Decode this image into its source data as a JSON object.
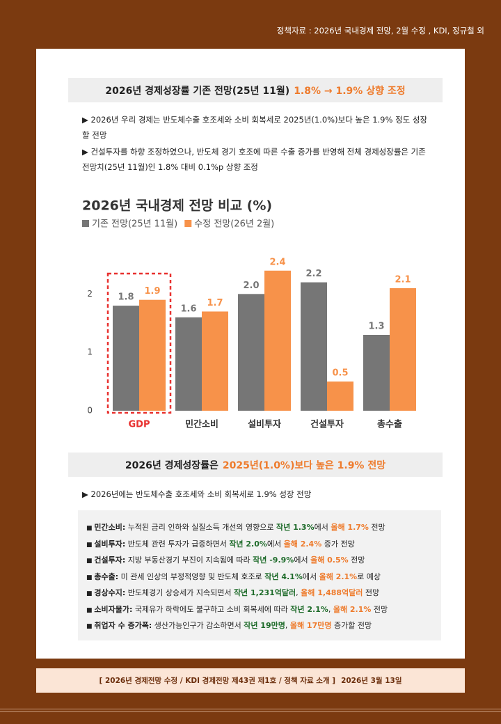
{
  "header": "정책자료 : 2026년 국내경제 전망, 2월 수정 , KDI, 정규철 외",
  "section1": {
    "title": "2026년 경제성장률 기존 전망(25년 11월)",
    "highlight": "1.8% → 1.9% 상향 조정",
    "bullets": [
      "2026년 우리 경제는 반도체수출 호조세와 소비 회복세로 2025년(1.0%)보다 높은 1.9% 정도 성장할 전망",
      "건설투자를 하향 조정하였으나, 반도체 경기 호조에 따른 수출 증가를 반영해 전체 경제성장률은 기존 전망치(25년 11월)인 1.8% 대비 0.1%p 상향 조정"
    ]
  },
  "chart_data": {
    "type": "bar",
    "title": "2026년 국내경제 전망 비교 (%)",
    "categories": [
      "GDP",
      "민간소비",
      "설비투자",
      "건설투자",
      "총수출"
    ],
    "series": [
      {
        "name": "기존 전망(25년 11월)",
        "color": "#767676",
        "values": [
          1.8,
          1.6,
          2.0,
          2.2,
          1.3
        ],
        "value_labels": [
          "1.8",
          "1.6",
          "2.0",
          "2.2",
          "1.3"
        ]
      },
      {
        "name": "수정 전망(26년 2월)",
        "color": "#f7924a",
        "values": [
          1.9,
          1.7,
          2.4,
          0.5,
          2.1
        ]
      }
    ],
    "ylim": [
      0,
      2.6
    ],
    "yticks": [
      0,
      1,
      2
    ]
  },
  "section2": {
    "title": "2026년 경제성장률은",
    "highlight": "2025년(1.0%)보다 높은 1.9% 전망",
    "bullet": "2026년에는 반도체수출 호조세와 소비 회복세로 1.9% 성장 전망",
    "items": [
      {
        "label": "민간소비:",
        "parts": [
          " 누적된 금리 인하와 실질소득 개선의 영향으로 ",
          {
            "text": "작년 1.3%",
            "color": "#1e6b2a"
          },
          "에서 ",
          {
            "text": "올해 1.7%",
            "color": "#ee7b2c"
          },
          " 전망"
        ]
      },
      {
        "label": "설비투자:",
        "parts": [
          " 반도체 관련 투자가 급증하면서 ",
          {
            "text": "작년 2.0%",
            "color": "#1e6b2a"
          },
          "에서 ",
          {
            "text": "올해 2.4%",
            "color": "#ee7b2c"
          },
          " 증가 전망"
        ]
      },
      {
        "label": "건설투자:",
        "parts": [
          " 지방 부동산경기 부진이 지속됨에 따라 ",
          {
            "text": "작년 -9.9%",
            "color": "#1e6b2a"
          },
          "에서 ",
          {
            "text": "올해 0.5%",
            "color": "#ee7b2c"
          },
          " 전망"
        ]
      },
      {
        "label": "총수출:",
        "parts": [
          " 미 관세 인상의 부정적영향 및 반도체 호조로 ",
          {
            "text": "작년 4.1%",
            "color": "#1e6b2a"
          },
          "에서 ",
          {
            "text": "올해 2.1%",
            "color": "#ee7b2c"
          },
          "로 예상"
        ]
      },
      {
        "label": "경상수지:",
        "parts": [
          " 반도체경기 상승세가 지속되면서 ",
          {
            "text": "작년 1,231억달러",
            "color": "#1e6b2a"
          },
          ", ",
          {
            "text": "올해 1,488억달러",
            "color": "#ee7b2c"
          },
          " 전망"
        ]
      },
      {
        "label": "소비자물가:",
        "parts": [
          " 국제유가 하락에도 불구하고 소비 회복세에 따라 ",
          {
            "text": "작년 2.1%",
            "color": "#1e6b2a"
          },
          ", ",
          {
            "text": "올해 2.1%",
            "color": "#ee7b2c"
          },
          " 전망"
        ]
      },
      {
        "label": "취업자 수 증가폭:",
        "parts": [
          " 생산가능인구가 감소하면서 ",
          {
            "text": "작년 19만명",
            "color": "#1e6b2a"
          },
          ", ",
          {
            "text": "올해 17만명",
            "color": "#ee7b2c"
          },
          " 증가할 전망"
        ]
      }
    ]
  },
  "footer": {
    "source": "[ 2026년 경제전망 수정 / KDI 경제전망 제43권 제1호 / 정책 자료 소개 ]",
    "date": "2026년 3월 13일"
  }
}
